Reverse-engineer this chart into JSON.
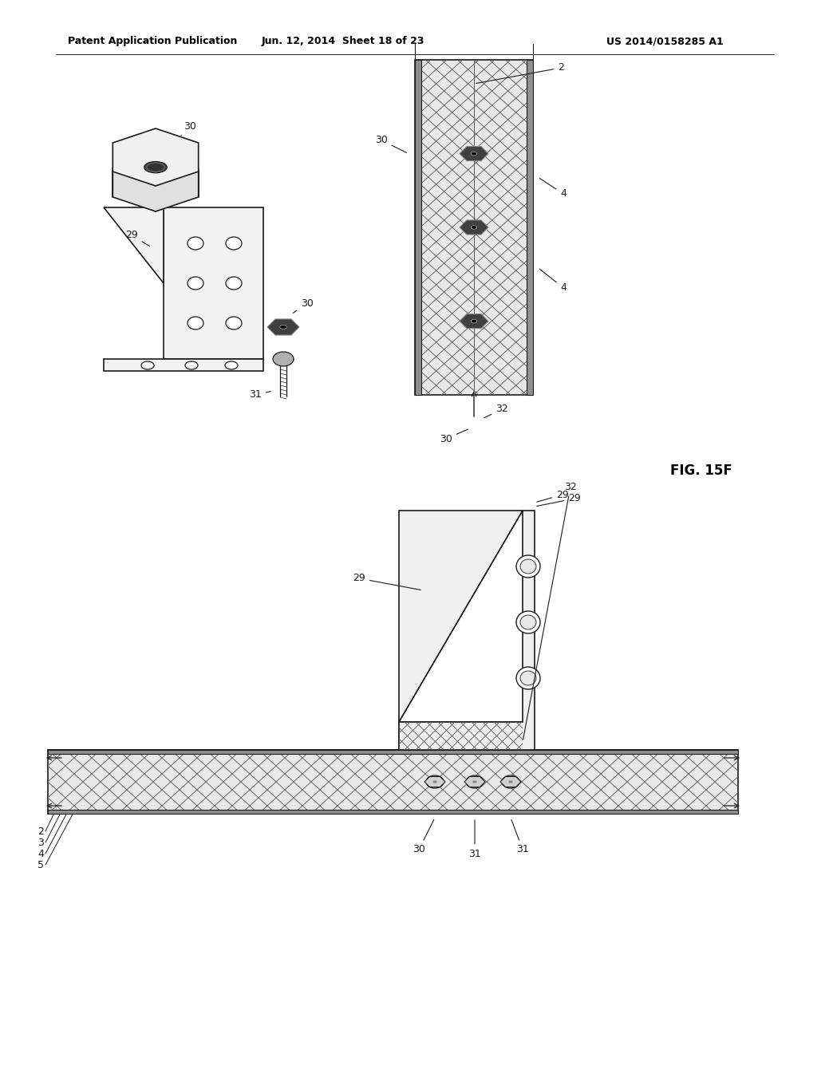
{
  "header_left": "Patent Application Publication",
  "header_center": "Jun. 12, 2014  Sheet 18 of 23",
  "header_right": "US 2014/0158285 A1",
  "background_color": "#ffffff",
  "line_color": "#1a1a1a",
  "figure_label": "FIG. 15F"
}
